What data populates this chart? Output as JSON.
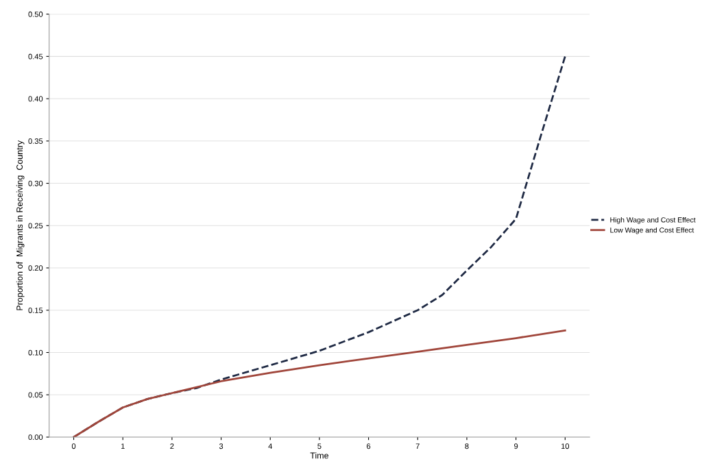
{
  "chart_data": {
    "type": "line",
    "xlabel": "Time",
    "ylabel": "Proportion of  Migrants in Receiving  Country",
    "xlim": [
      -0.5,
      10.5
    ],
    "xticks": [
      0,
      1,
      2,
      3,
      4,
      5,
      6,
      7,
      8,
      9,
      10
    ],
    "ylim": [
      0,
      0.5
    ],
    "yticks": [
      {
        "value": 0,
        "label": "0.00"
      },
      {
        "value": 0.05,
        "label": "0.05"
      },
      {
        "value": 0.1,
        "label": "0.10"
      },
      {
        "value": 0.15,
        "label": "0.15"
      },
      {
        "value": 0.2,
        "label": "0.20"
      },
      {
        "value": 0.25,
        "label": "0.25"
      },
      {
        "value": 0.3,
        "label": "0.30"
      },
      {
        "value": 0.35,
        "label": "0.35"
      },
      {
        "value": 0.4,
        "label": "0.40"
      },
      {
        "value": 0.45,
        "label": "0.45"
      },
      {
        "value": 0.5,
        "label": "0.50"
      }
    ],
    "grid": "y",
    "legend": "right",
    "marker": "none",
    "series": [
      {
        "name": "High Wage and Cost Effect",
        "color": "#1f2a44",
        "line_style": "dashed",
        "x": [
          0,
          0.5,
          1,
          1.5,
          2,
          2.5,
          3,
          4,
          5,
          6,
          7,
          7.5,
          8,
          8.5,
          9,
          9.5,
          10
        ],
        "values": [
          0,
          0.018,
          0.035,
          0.045,
          0.052,
          0.058,
          0.068,
          0.085,
          0.102,
          0.124,
          0.15,
          0.168,
          0.197,
          0.225,
          0.258,
          0.355,
          0.45
        ]
      },
      {
        "name": "Low Wage and Cost Effect",
        "color": "#a0453a",
        "line_style": "solid",
        "x": [
          0,
          0.5,
          1,
          1.5,
          2,
          3,
          4,
          5,
          6,
          7,
          8,
          9,
          10
        ],
        "values": [
          0,
          0.018,
          0.035,
          0.045,
          0.052,
          0.066,
          0.076,
          0.085,
          0.093,
          0.101,
          0.109,
          0.117,
          0.126
        ]
      }
    ]
  }
}
